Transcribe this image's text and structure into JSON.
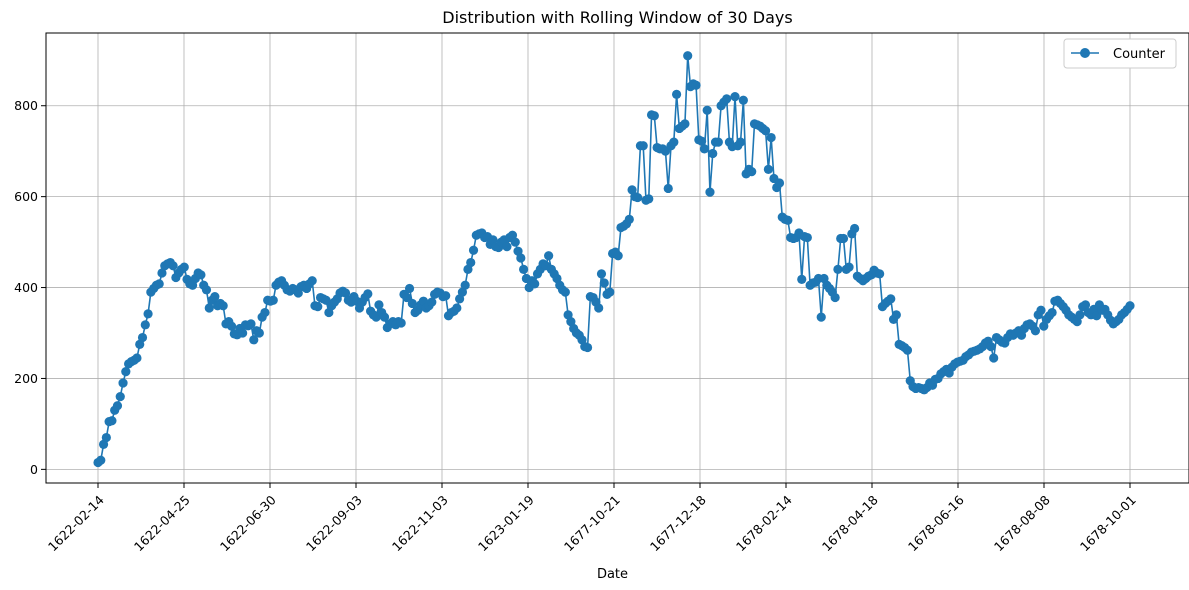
{
  "chart_data": {
    "type": "line",
    "title": "Distribution with Rolling Window of 30 Days",
    "xlabel": "Date",
    "ylabel": "",
    "ylim": [
      -30,
      960
    ],
    "yticks": [
      0,
      200,
      400,
      600,
      800
    ],
    "x_tick_labels": [
      "1622-02-14",
      "1622-04-25",
      "1622-06-30",
      "1622-09-03",
      "1622-11-03",
      "1623-01-19",
      "1677-10-21",
      "1677-12-18",
      "1678-02-14",
      "1678-04-18",
      "1678-06-16",
      "1678-08-08",
      "1678-10-01"
    ],
    "grid": true,
    "legend_position": "top-right",
    "color": "#1f77b4",
    "series": [
      {
        "name": "Counter",
        "marker": "circle",
        "values": [
          15,
          20,
          55,
          70,
          105,
          107,
          130,
          140,
          160,
          190,
          215,
          232,
          237,
          240,
          245,
          275,
          290,
          318,
          342,
          390,
          398,
          405,
          408,
          432,
          448,
          452,
          455,
          448,
          422,
          432,
          440,
          445,
          418,
          408,
          405,
          420,
          432,
          428,
          405,
          395,
          355,
          372,
          380,
          360,
          365,
          360,
          320,
          325,
          315,
          298,
          296,
          310,
          300,
          318,
          316,
          320,
          285,
          305,
          300,
          335,
          345,
          372,
          370,
          372,
          405,
          412,
          415,
          405,
          395,
          392,
          398,
          395,
          388,
          402,
          405,
          398,
          408,
          415,
          360,
          358,
          378,
          375,
          372,
          345,
          360,
          368,
          375,
          388,
          392,
          388,
          372,
          368,
          380,
          370,
          355,
          368,
          378,
          386,
          348,
          340,
          335,
          362,
          345,
          335,
          312,
          320,
          325,
          318,
          325,
          322,
          385,
          378,
          398,
          365,
          345,
          350,
          362,
          370,
          355,
          360,
          368,
          385,
          390,
          388,
          380,
          382,
          338,
          345,
          348,
          355,
          375,
          390,
          405,
          440,
          455,
          482,
          515,
          518,
          520,
          510,
          512,
          495,
          505,
          490,
          488,
          500,
          505,
          490,
          510,
          515,
          500,
          480,
          465,
          440,
          420,
          400,
          415,
          408,
          430,
          440,
          452,
          448,
          470,
          440,
          430,
          420,
          405,
          395,
          390,
          340,
          325,
          310,
          300,
          295,
          285,
          270,
          268,
          380,
          378,
          368,
          355,
          430,
          410,
          385,
          390,
          475,
          478,
          470,
          532,
          535,
          540,
          550,
          615,
          600,
          598,
          712,
          712,
          592,
          595,
          780,
          778,
          708,
          705,
          705,
          700,
          618,
          712,
          720,
          825,
          750,
          755,
          760,
          910,
          842,
          848,
          845,
          725,
          722,
          705,
          790,
          610,
          695,
          720,
          720,
          800,
          808,
          815,
          720,
          710,
          820,
          712,
          720,
          812,
          650,
          660,
          655,
          760,
          758,
          755,
          750,
          745,
          660,
          730,
          640,
          620,
          630,
          555,
          550,
          548,
          510,
          508,
          510,
          520,
          418,
          512,
          510,
          405,
          410,
          412,
          420,
          335,
          420,
          405,
          398,
          390,
          378,
          440,
          508,
          508,
          440,
          445,
          518,
          530,
          425,
          420,
          415,
          420,
          425,
          428,
          438,
          432,
          430,
          358,
          365,
          370,
          375,
          330,
          340,
          275,
          272,
          268,
          262,
          195,
          182,
          178,
          180,
          178,
          175,
          180,
          190,
          185,
          198,
          200,
          210,
          215,
          220,
          212,
          225,
          232,
          236,
          238,
          240,
          248,
          252,
          258,
          260,
          262,
          265,
          270,
          278,
          282,
          270,
          245,
          290,
          285,
          280,
          278,
          290,
          298,
          295,
          300,
          305,
          295,
          310,
          318,
          320,
          315,
          305,
          340,
          350,
          315,
          330,
          338,
          345,
          370,
          372,
          365,
          358,
          350,
          340,
          335,
          330,
          325,
          340,
          358,
          362,
          345,
          340,
          352,
          338,
          362,
          350,
          352,
          340,
          328,
          320,
          325,
          330,
          340,
          345,
          352,
          360
        ]
      }
    ]
  }
}
